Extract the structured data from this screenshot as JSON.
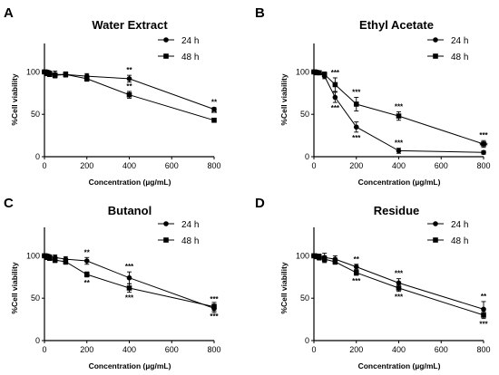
{
  "chart_data": [
    {
      "type": "line",
      "panel": "A",
      "title": "Water Extract",
      "xlabel": "Concentration (µg/mL)",
      "ylabel": "%Cell viability",
      "xlim": [
        0,
        800
      ],
      "ylim": [
        0,
        125
      ],
      "xticks": [
        0,
        200,
        400,
        600,
        800
      ],
      "yticks": [
        0,
        50,
        100
      ],
      "x": [
        0,
        12.5,
        25,
        50,
        100,
        200,
        400,
        800
      ],
      "legend_position": "top-right",
      "grid": false,
      "series": [
        {
          "name": "24 h",
          "marker": "circle",
          "values": [
            100,
            100,
            99,
            97,
            97,
            95,
            92,
            56
          ],
          "errors": [
            2,
            2,
            2,
            4,
            3,
            3,
            4,
            2
          ],
          "annotations": [
            {
              "x": 400,
              "text": "**",
              "position": "above"
            },
            {
              "x": 800,
              "text": "**",
              "position": "above"
            }
          ]
        },
        {
          "name": "48 h",
          "marker": "square",
          "values": [
            100,
            98,
            97,
            96,
            97,
            92,
            73,
            43
          ],
          "errors": [
            2,
            2,
            2,
            3,
            3,
            3,
            4,
            2
          ],
          "annotations": [
            {
              "x": 400,
              "text": "**",
              "position": "above"
            },
            {
              "x": 800,
              "text": "**",
              "position": "above"
            }
          ]
        }
      ]
    },
    {
      "type": "line",
      "panel": "B",
      "title": "Ethyl Acetate",
      "xlabel": "Concentration (µg/mL)",
      "ylabel": "%Cell viability",
      "xlim": [
        0,
        800
      ],
      "ylim": [
        0,
        125
      ],
      "xticks": [
        0,
        200,
        400,
        600,
        800
      ],
      "yticks": [
        0,
        50,
        100
      ],
      "x": [
        0,
        12.5,
        25,
        50,
        100,
        200,
        400,
        800
      ],
      "legend_position": "top-right",
      "grid": false,
      "series": [
        {
          "name": "24 h",
          "marker": "circle",
          "values": [
            100,
            100,
            99,
            95,
            70,
            35,
            7,
            5
          ],
          "errors": [
            2,
            2,
            2,
            3,
            6,
            6,
            3,
            2
          ],
          "annotations": [
            {
              "x": 100,
              "text": "***",
              "position": "below"
            },
            {
              "x": 200,
              "text": "***",
              "position": "below"
            },
            {
              "x": 400,
              "text": "***",
              "position": "above"
            },
            {
              "x": 800,
              "text": "***",
              "position": "above"
            }
          ]
        },
        {
          "name": "48 h",
          "marker": "square",
          "values": [
            100,
            99,
            99,
            97,
            85,
            62,
            48,
            15
          ],
          "errors": [
            2,
            2,
            2,
            3,
            8,
            8,
            5,
            4
          ],
          "annotations": [
            {
              "x": 100,
              "text": "***",
              "position": "above"
            },
            {
              "x": 200,
              "text": "***",
              "position": "above"
            },
            {
              "x": 400,
              "text": "***",
              "position": "above"
            },
            {
              "x": 800,
              "text": "***",
              "position": "above"
            }
          ]
        }
      ]
    },
    {
      "type": "line",
      "panel": "C",
      "title": "Butanol",
      "xlabel": "Concentration (µg/mL)",
      "ylabel": "%Cell viability",
      "xlim": [
        0,
        800
      ],
      "ylim": [
        0,
        125
      ],
      "xticks": [
        0,
        200,
        400,
        600,
        800
      ],
      "yticks": [
        0,
        50,
        100
      ],
      "x": [
        0,
        12.5,
        25,
        50,
        100,
        200,
        400,
        800
      ],
      "legend_position": "top-right",
      "grid": false,
      "series": [
        {
          "name": "24 h",
          "marker": "circle",
          "values": [
            100,
            100,
            99,
            98,
            96,
            94,
            74,
            38
          ],
          "errors": [
            2,
            2,
            2,
            3,
            3,
            4,
            7,
            5
          ],
          "annotations": [
            {
              "x": 200,
              "text": "**",
              "position": "above"
            },
            {
              "x": 400,
              "text": "***",
              "position": "above"
            },
            {
              "x": 800,
              "text": "***",
              "position": "above"
            }
          ]
        },
        {
          "name": "48 h",
          "marker": "square",
          "values": [
            100,
            98,
            97,
            95,
            93,
            78,
            62,
            40
          ],
          "errors": [
            2,
            2,
            2,
            3,
            3,
            3,
            5,
            5
          ],
          "annotations": [
            {
              "x": 200,
              "text": "**",
              "position": "below"
            },
            {
              "x": 400,
              "text": "***",
              "position": "below"
            },
            {
              "x": 800,
              "text": "***",
              "position": "below"
            }
          ]
        }
      ]
    },
    {
      "type": "line",
      "panel": "D",
      "title": "Residue",
      "xlabel": "Concentration (µg/mL)",
      "ylabel": "%Cell viability",
      "xlim": [
        0,
        800
      ],
      "ylim": [
        0,
        125
      ],
      "xticks": [
        0,
        200,
        400,
        600,
        800
      ],
      "yticks": [
        0,
        50,
        100
      ],
      "x": [
        0,
        12.5,
        25,
        50,
        100,
        200,
        400,
        800
      ],
      "legend_position": "top-right",
      "grid": false,
      "series": [
        {
          "name": "24 h",
          "marker": "circle",
          "values": [
            100,
            100,
            99,
            98,
            96,
            87,
            68,
            37
          ],
          "errors": [
            2,
            2,
            3,
            5,
            4,
            3,
            5,
            9
          ],
          "annotations": [
            {
              "x": 200,
              "text": "**",
              "position": "above"
            },
            {
              "x": 400,
              "text": "***",
              "position": "above"
            },
            {
              "x": 800,
              "text": "**",
              "position": "above"
            }
          ]
        },
        {
          "name": "48 h",
          "marker": "square",
          "values": [
            100,
            99,
            98,
            96,
            93,
            80,
            62,
            30
          ],
          "errors": [
            2,
            2,
            3,
            4,
            3,
            3,
            4,
            4
          ],
          "annotations": [
            {
              "x": 200,
              "text": "***",
              "position": "below"
            },
            {
              "x": 400,
              "text": "***",
              "position": "below"
            },
            {
              "x": 800,
              "text": "***",
              "position": "below"
            }
          ]
        }
      ]
    }
  ]
}
